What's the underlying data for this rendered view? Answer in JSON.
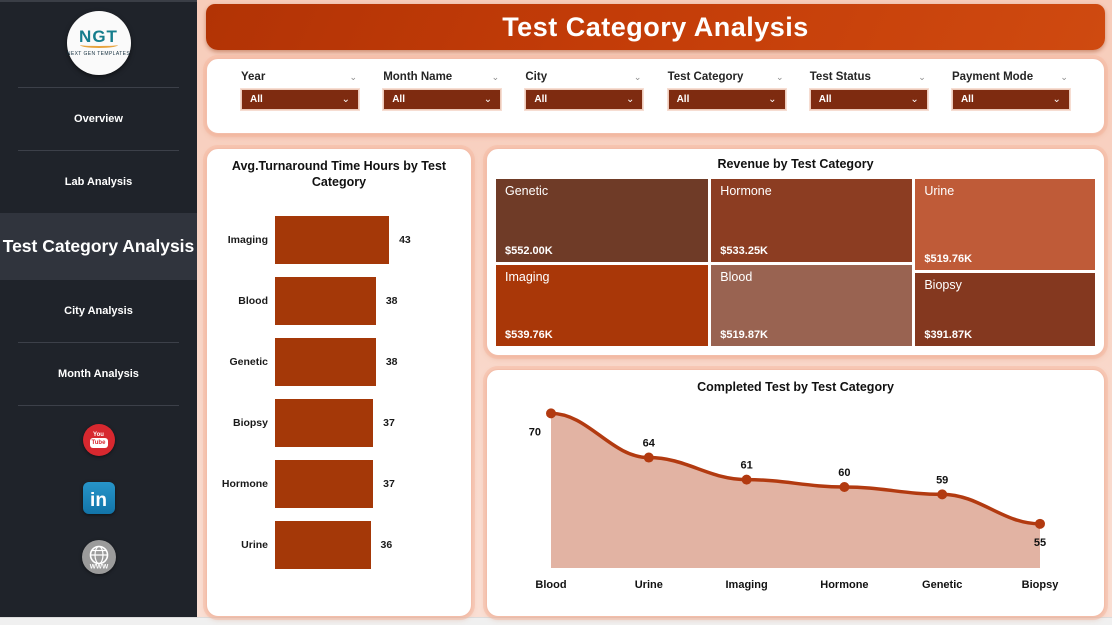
{
  "header": {
    "title": "Test Category Analysis"
  },
  "sidebar": {
    "logo": {
      "text": "NGT",
      "tagline": "NEXT GEN TEMPLATES"
    },
    "items": [
      {
        "label": "Overview",
        "selected": false
      },
      {
        "label": "Lab Analysis",
        "selected": false
      },
      {
        "label": "Test Category Analysis",
        "selected": true
      },
      {
        "label": "City Analysis",
        "selected": false
      },
      {
        "label": "Month Analysis",
        "selected": false
      }
    ],
    "social_icons": [
      "youtube-icon",
      "linkedin-icon",
      "website-icon"
    ]
  },
  "filters": {
    "items": [
      {
        "label": "Year",
        "value": "All"
      },
      {
        "label": "Month Name",
        "value": "All"
      },
      {
        "label": "City",
        "value": "All"
      },
      {
        "label": "Test Category",
        "value": "All"
      },
      {
        "label": "Test Status",
        "value": "All"
      },
      {
        "label": "Payment Mode",
        "value": "All"
      }
    ]
  },
  "colors": {
    "accent": "#b23305",
    "dropdown": "#7e2b10",
    "bar": "#a43808",
    "area_line": "#b23a10",
    "area_fill": "#e2b3a3"
  },
  "chart_data": [
    {
      "type": "bar",
      "orientation": "horizontal",
      "title": "Avg.Turnaround Time Hours by Test Category",
      "categories": [
        "Imaging",
        "Blood",
        "Genetic",
        "Biopsy",
        "Hormone",
        "Urine"
      ],
      "values": [
        43,
        38,
        38,
        37,
        37,
        36
      ],
      "xlim": [
        0,
        43
      ],
      "bar_color": "#a43808",
      "value_labels": true,
      "grid": false
    },
    {
      "type": "treemap",
      "title": "Revenue by Test Category",
      "items": [
        {
          "label": "Genetic",
          "value_label": "$552.00K",
          "value": 552.0,
          "color": "#6f3b27"
        },
        {
          "label": "Hormone",
          "value_label": "$533.25K",
          "value": 533.25,
          "color": "#8c3d22"
        },
        {
          "label": "Urine",
          "value_label": "$519.76K",
          "value": 519.76,
          "color": "#bf5b38"
        },
        {
          "label": "Imaging",
          "value_label": "$539.76K",
          "value": 539.76,
          "color": "#a93708"
        },
        {
          "label": "Blood",
          "value_label": "$519.87K",
          "value": 519.87,
          "color": "#996351"
        },
        {
          "label": "Biopsy",
          "value_label": "$391.87K",
          "value": 391.87,
          "color": "#84381f"
        }
      ],
      "layout": {
        "columns": [
          {
            "width": 0.358,
            "tiles": [
              {
                "index": 0,
                "h": 0.505
              },
              {
                "index": 3,
                "h": 0.495
              }
            ]
          },
          {
            "width": 0.339,
            "tiles": [
              {
                "index": 1,
                "h": 0.505
              },
              {
                "index": 4,
                "h": 0.495
              }
            ]
          },
          {
            "width": 0.303,
            "tiles": [
              {
                "index": 2,
                "h": 0.555
              },
              {
                "index": 5,
                "h": 0.445
              }
            ]
          }
        ]
      }
    },
    {
      "type": "area",
      "title": "Completed Test by Test Category",
      "categories": [
        "Blood",
        "Urine",
        "Imaging",
        "Hormone",
        "Genetic",
        "Biopsy"
      ],
      "values": [
        70,
        64,
        61,
        60,
        59,
        55
      ],
      "ylim": [
        49,
        72
      ],
      "line_color": "#b23a10",
      "fill_color": "#e2b3a3",
      "marker_color": "#b23a10",
      "grid": false,
      "legend": false
    }
  ]
}
